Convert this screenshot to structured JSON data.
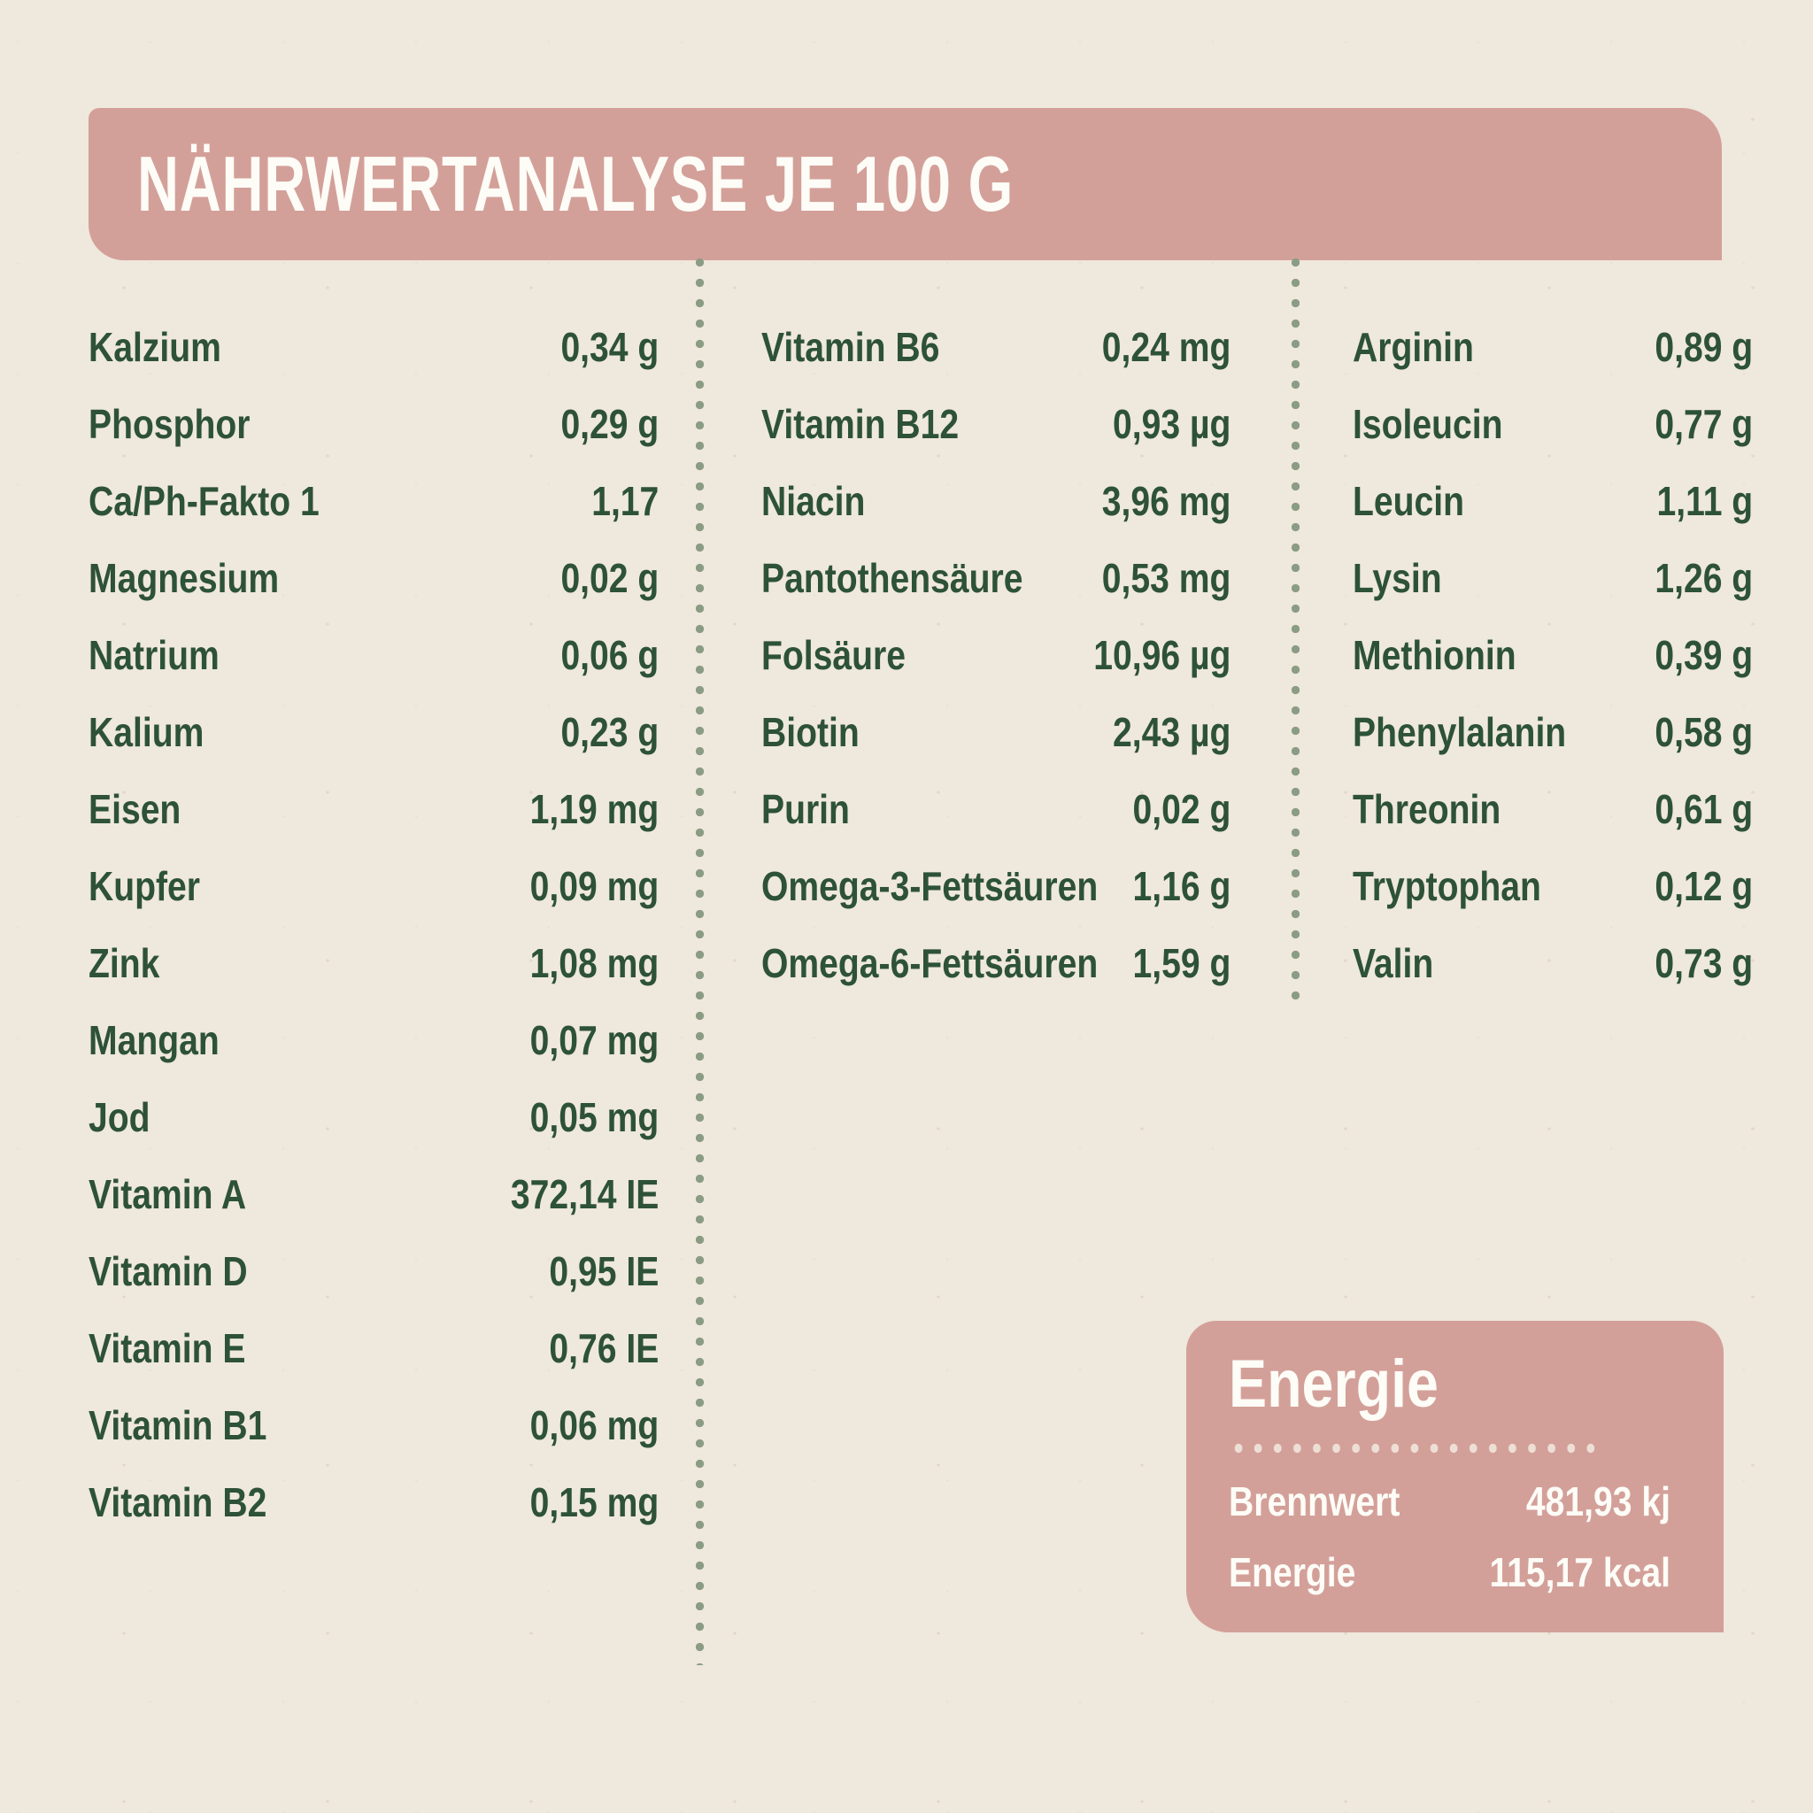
{
  "header": {
    "title": "NÄHRWERTANALYSE JE 100 G"
  },
  "colors": {
    "background": "#efe8dc",
    "accent_rose": "#d3a099",
    "text_green": "#2d5237",
    "dot_sage": "#8b9c84",
    "dot_cream": "#eedfd6",
    "text_white": "#fdfcf7"
  },
  "columns": [
    {
      "rows": [
        {
          "label": "Kalzium",
          "value": "0,34 g"
        },
        {
          "label": "Phosphor",
          "value": "0,29 g"
        },
        {
          "label": "Ca/Ph-Fakto 1",
          "value": "1,17"
        },
        {
          "label": "Magnesium",
          "value": "0,02 g"
        },
        {
          "label": "Natrium",
          "value": "0,06 g"
        },
        {
          "label": "Kalium",
          "value": "0,23 g"
        },
        {
          "label": "Eisen",
          "value": "1,19 mg"
        },
        {
          "label": "Kupfer",
          "value": "0,09 mg"
        },
        {
          "label": "Zink",
          "value": "1,08 mg"
        },
        {
          "label": "Mangan",
          "value": "0,07 mg"
        },
        {
          "label": "Jod",
          "value": "0,05 mg"
        },
        {
          "label": "Vitamin A",
          "value": "372,14 IE"
        },
        {
          "label": "Vitamin D",
          "value": "0,95 IE"
        },
        {
          "label": "Vitamin E",
          "value": "0,76 IE"
        },
        {
          "label": "Vitamin B1",
          "value": "0,06 mg"
        },
        {
          "label": "Vitamin B2",
          "value": "0,15 mg"
        }
      ]
    },
    {
      "rows": [
        {
          "label": "Vitamin B6",
          "value": "0,24 mg"
        },
        {
          "label": "Vitamin B12",
          "value": "0,93 µg"
        },
        {
          "label": "Niacin",
          "value": "3,96 mg"
        },
        {
          "label": "Pantothensäure",
          "value": "0,53 mg"
        },
        {
          "label": "Folsäure",
          "value": "10,96 µg"
        },
        {
          "label": "Biotin",
          "value": "2,43 µg"
        },
        {
          "label": "Purin",
          "value": "0,02 g"
        },
        {
          "label": "Omega-3-Fettsäuren",
          "value": "1,16 g"
        },
        {
          "label": "Omega-6-Fettsäuren",
          "value": "1,59 g"
        }
      ]
    },
    {
      "rows": [
        {
          "label": "Arginin",
          "value": "0,89 g"
        },
        {
          "label": "Isoleucin",
          "value": "0,77 g"
        },
        {
          "label": "Leucin",
          "value": "1,11 g"
        },
        {
          "label": "Lysin",
          "value": "1,26 g"
        },
        {
          "label": "Methionin",
          "value": "0,39 g"
        },
        {
          "label": "Phenylalanin",
          "value": "0,58 g"
        },
        {
          "label": "Threonin",
          "value": "0,61 g"
        },
        {
          "label": "Tryptophan",
          "value": "0,12 g"
        },
        {
          "label": "Valin",
          "value": "0,73 g"
        }
      ]
    }
  ],
  "energy_box": {
    "title": "Energie",
    "rows": [
      {
        "label": "Brennwert",
        "value": "481,93 kj"
      },
      {
        "label": "Energie",
        "value": "115,17 kcal"
      }
    ]
  }
}
